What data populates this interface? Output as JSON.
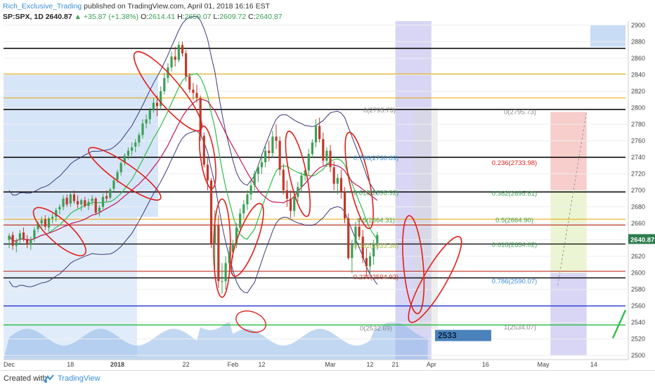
{
  "header": {
    "author": "Rich_Exclusive_Trading",
    "published": "published on TradingView.com, April 01, 2018 16:16 EST",
    "symbol": "SP:SPX, 1D",
    "last": "2640.87",
    "change": "+35.87 (+1.38%)",
    "open_label": "O:",
    "open": "2614.41",
    "high_label": "H:",
    "high": "2659.07",
    "low_label": "L:",
    "low": "2609.72",
    "close_label": "C:",
    "close": "2640.87"
  },
  "footer": {
    "made_with": "Created with",
    "brand": "TradingView"
  },
  "colors": {
    "up": "#3aa055",
    "down": "#c0392b",
    "ellipse": "#e0201b",
    "blue_zone": "#c9dcf5",
    "purple_zone": "#c7c4f0",
    "bollinger": "#3a3a7a",
    "ma_green": "#2fbf4a",
    "ma_red": "#c2185b",
    "volume": "#8fb8e8",
    "price_tag": "#2b6cb0"
  },
  "chart_data": {
    "type": "candlestick",
    "ylim": [
      2495,
      2905
    ],
    "y_ticks": [
      2500,
      2520,
      2540,
      2560,
      2580,
      2600,
      2620,
      2640,
      2660,
      2680,
      2700,
      2720,
      2740,
      2760,
      2780,
      2800,
      2820,
      2840,
      2860,
      2880,
      2900
    ],
    "x_tick_labels": [
      "Dec",
      "18",
      "2018",
      "22",
      "Feb",
      "12",
      "Mar",
      "12",
      "21",
      "Apr",
      "16",
      "May",
      "14"
    ],
    "x_tick_index": [
      0,
      17,
      30,
      49,
      62,
      70,
      89,
      100,
      107,
      117,
      132,
      148,
      162
    ],
    "bars": [
      [
        2640,
        2648,
        2630,
        2645
      ],
      [
        2646,
        2650,
        2628,
        2633
      ],
      [
        2633,
        2642,
        2625,
        2638
      ],
      [
        2640,
        2652,
        2636,
        2648
      ],
      [
        2649,
        2655,
        2638,
        2641
      ],
      [
        2641,
        2646,
        2630,
        2635
      ],
      [
        2634,
        2644,
        2628,
        2640
      ],
      [
        2642,
        2656,
        2638,
        2652
      ],
      [
        2653,
        2663,
        2649,
        2660
      ],
      [
        2660,
        2668,
        2655,
        2664
      ],
      [
        2665,
        2670,
        2652,
        2656
      ],
      [
        2655,
        2668,
        2650,
        2666
      ],
      [
        2666,
        2672,
        2660,
        2668
      ],
      [
        2668,
        2679,
        2662,
        2676
      ],
      [
        2677,
        2683,
        2671,
        2680
      ],
      [
        2680,
        2694,
        2676,
        2690
      ],
      [
        2691,
        2695,
        2680,
        2683
      ],
      [
        2684,
        2698,
        2680,
        2695
      ],
      [
        2695,
        2700,
        2684,
        2687
      ],
      [
        2687,
        2694,
        2678,
        2683
      ],
      [
        2683,
        2690,
        2675,
        2688
      ],
      [
        2688,
        2692,
        2679,
        2681
      ],
      [
        2681,
        2690,
        2676,
        2686
      ],
      [
        2687,
        2694,
        2682,
        2690
      ],
      [
        2690,
        2692,
        2670,
        2673
      ],
      [
        2674,
        2682,
        2668,
        2679
      ],
      [
        2680,
        2696,
        2677,
        2692
      ],
      [
        2693,
        2700,
        2686,
        2690
      ],
      [
        2691,
        2703,
        2689,
        2701
      ],
      [
        2702,
        2715,
        2698,
        2712
      ],
      [
        2713,
        2725,
        2709,
        2722
      ],
      [
        2722,
        2735,
        2718,
        2733
      ],
      [
        2734,
        2745,
        2730,
        2742
      ],
      [
        2742,
        2752,
        2737,
        2748
      ],
      [
        2748,
        2758,
        2742,
        2752
      ],
      [
        2753,
        2762,
        2746,
        2758
      ],
      [
        2758,
        2770,
        2753,
        2767
      ],
      [
        2767,
        2786,
        2763,
        2781
      ],
      [
        2781,
        2792,
        2775,
        2786
      ],
      [
        2786,
        2800,
        2780,
        2797
      ],
      [
        2798,
        2812,
        2794,
        2806
      ],
      [
        2806,
        2815,
        2790,
        2802
      ],
      [
        2802,
        2826,
        2798,
        2820
      ],
      [
        2820,
        2842,
        2816,
        2836
      ],
      [
        2836,
        2854,
        2830,
        2849
      ],
      [
        2849,
        2868,
        2844,
        2862
      ],
      [
        2862,
        2874,
        2850,
        2858
      ],
      [
        2858,
        2880,
        2855,
        2876
      ],
      [
        2876,
        2880,
        2862,
        2866
      ],
      [
        2866,
        2870,
        2832,
        2838
      ],
      [
        2838,
        2842,
        2818,
        2822
      ],
      [
        2822,
        2830,
        2810,
        2818
      ],
      [
        2818,
        2828,
        2806,
        2812
      ],
      [
        2812,
        2815,
        2760,
        2766
      ],
      [
        2766,
        2770,
        2728,
        2731
      ],
      [
        2731,
        2740,
        2700,
        2712
      ],
      [
        2712,
        2715,
        2630,
        2635
      ],
      [
        2635,
        2676,
        2604,
        2658
      ],
      [
        2658,
        2670,
        2582,
        2590
      ],
      [
        2590,
        2612,
        2575,
        2590
      ],
      [
        2590,
        2620,
        2580,
        2612
      ],
      [
        2612,
        2632,
        2600,
        2625
      ],
      [
        2625,
        2640,
        2618,
        2635
      ],
      [
        2635,
        2660,
        2630,
        2655
      ],
      [
        2655,
        2678,
        2650,
        2672
      ],
      [
        2672,
        2688,
        2666,
        2683
      ],
      [
        2683,
        2700,
        2676,
        2695
      ],
      [
        2695,
        2712,
        2688,
        2706
      ],
      [
        2706,
        2724,
        2700,
        2720
      ],
      [
        2720,
        2730,
        2710,
        2728
      ],
      [
        2728,
        2742,
        2720,
        2734
      ],
      [
        2734,
        2755,
        2728,
        2748
      ],
      [
        2748,
        2760,
        2735,
        2745
      ],
      [
        2745,
        2772,
        2740,
        2765
      ],
      [
        2765,
        2780,
        2750,
        2760
      ],
      [
        2760,
        2765,
        2718,
        2725
      ],
      [
        2725,
        2732,
        2695,
        2700
      ],
      [
        2700,
        2712,
        2680,
        2690
      ],
      [
        2690,
        2700,
        2666,
        2675
      ],
      [
        2675,
        2698,
        2668,
        2692
      ],
      [
        2692,
        2710,
        2686,
        2704
      ],
      [
        2704,
        2722,
        2698,
        2718
      ],
      [
        2718,
        2728,
        2712,
        2724
      ],
      [
        2724,
        2750,
        2718,
        2744
      ],
      [
        2744,
        2762,
        2740,
        2758
      ],
      [
        2758,
        2786,
        2752,
        2778
      ],
      [
        2778,
        2788,
        2758,
        2762
      ],
      [
        2762,
        2770,
        2730,
        2736
      ],
      [
        2736,
        2752,
        2728,
        2748
      ],
      [
        2748,
        2755,
        2722,
        2728
      ],
      [
        2728,
        2735,
        2700,
        2708
      ],
      [
        2708,
        2720,
        2695,
        2715
      ],
      [
        2715,
        2725,
        2690,
        2698
      ],
      [
        2698,
        2704,
        2660,
        2666
      ],
      [
        2666,
        2672,
        2616,
        2618
      ],
      [
        2618,
        2640,
        2600,
        2634
      ],
      [
        2634,
        2662,
        2628,
        2656
      ],
      [
        2656,
        2666,
        2640,
        2644
      ],
      [
        2644,
        2652,
        2612,
        2618
      ],
      [
        2618,
        2630,
        2596,
        2608
      ],
      [
        2608,
        2625,
        2598,
        2620
      ],
      [
        2620,
        2640,
        2610,
        2636
      ],
      [
        2636,
        2650,
        2628,
        2646
      ]
    ],
    "horizontal_levels": [
      2872,
      2841,
      2812,
      2798,
      2740,
      2698,
      2665,
      2658,
      2635,
      2602,
      2594,
      2560,
      2537
    ],
    "fib_labels": [
      {
        "text": "0(2795.73)",
        "color": "#888"
      },
      {
        "text": "0.236(2733.98)",
        "color": "#e0201b"
      },
      {
        "text": "0.382(2695.81)",
        "color": "#3aa055"
      },
      {
        "text": "0.5(2664.90)",
        "color": "#3aa055"
      },
      {
        "text": "0.618(2634.02)",
        "color": "#3aa055"
      },
      {
        "text": "0.786(2590.07)",
        "color": "#3b8fd6"
      },
      {
        "text": "1(2534.07)",
        "color": "#888"
      },
      {
        "text": "0.786(2730.89)",
        "color": "#3b8fd6"
      },
      {
        "text": "0.618(2696.92)",
        "color": "#3aa055"
      },
      {
        "text": "0.5(2664.31)",
        "color": "#3aa055"
      },
      {
        "text": "0.382(2633.38)",
        "color": "#aab84a"
      },
      {
        "text": "0.236(2594.92)",
        "color": "#c0392b"
      },
      {
        "text": "0(2532.69)",
        "color": "#888"
      },
      {
        "text": "0(2795.73)",
        "color": "#888"
      }
    ],
    "price_tag": "2640.87",
    "target_label": "2533"
  }
}
